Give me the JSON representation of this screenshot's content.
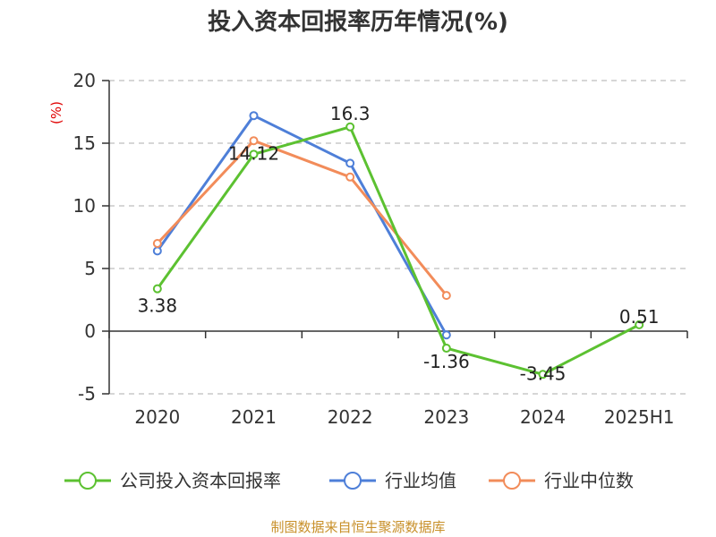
{
  "chart_data": {
    "type": "line",
    "title": "投入资本回报率历年情况(%)",
    "ylabel": "(%)",
    "xlabel": "",
    "categories": [
      "2020",
      "2021",
      "2022",
      "2023",
      "2024",
      "2025H1"
    ],
    "ylim": [
      -5,
      20
    ],
    "yticks": [
      -5,
      0,
      5,
      10,
      15,
      20
    ],
    "grid": true,
    "legend_position": "bottom",
    "series": [
      {
        "name": "公司投入资本回报率",
        "color": "#5cc131",
        "values": [
          3.38,
          14.12,
          16.3,
          -1.36,
          -3.45,
          0.51
        ],
        "labels": [
          "3.38",
          "14.12",
          "16.3",
          "-1.36",
          "-3.45",
          "0.51"
        ]
      },
      {
        "name": "行业均值",
        "color": "#4e7fd8",
        "values": [
          6.4,
          17.2,
          13.4,
          -0.3,
          null,
          null
        ]
      },
      {
        "name": "行业中位数",
        "color": "#f28c5a",
        "values": [
          7.0,
          15.2,
          12.3,
          2.85,
          null,
          null
        ]
      }
    ],
    "source": "制图数据来自恒生聚源数据库"
  }
}
